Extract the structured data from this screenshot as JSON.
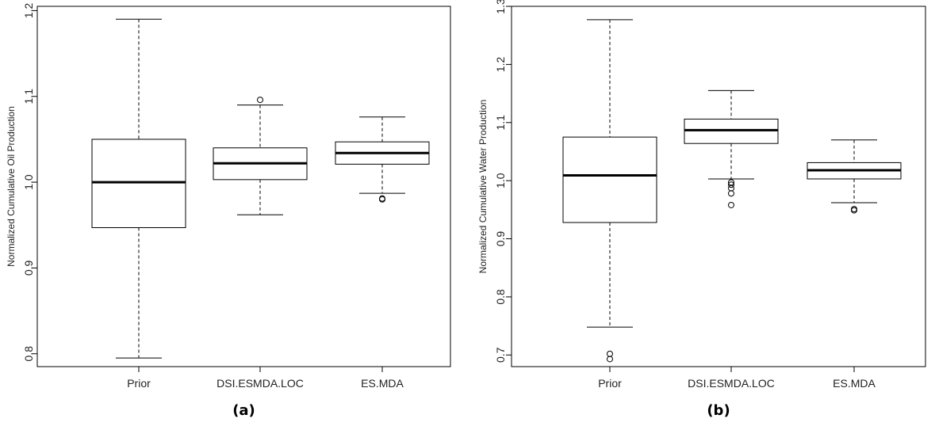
{
  "chart_data": [
    {
      "type": "boxplot",
      "panel_label": "(a)",
      "ylabel": "Normalized Cumulative Oil Production",
      "ylim": [
        0.785,
        1.205
      ],
      "yticks": [
        {
          "value": 0.8,
          "label": "0.8"
        },
        {
          "value": 0.9,
          "label": "0.9"
        },
        {
          "value": 1.0,
          "label": "1.0"
        },
        {
          "value": 1.1,
          "label": "1.1"
        },
        {
          "value": 1.2,
          "label": "1.2"
        }
      ],
      "categories": [
        "Prior",
        "DSI.ESMDA.LOC",
        "ES.MDA"
      ],
      "boxes": [
        {
          "whisker_low": 0.795,
          "q1": 0.947,
          "median": 1.0,
          "q3": 1.05,
          "whisker_high": 1.19,
          "outliers": []
        },
        {
          "whisker_low": 0.962,
          "q1": 1.003,
          "median": 1.022,
          "q3": 1.04,
          "whisker_high": 1.09,
          "outliers": [
            1.096
          ]
        },
        {
          "whisker_low": 0.987,
          "q1": 1.021,
          "median": 1.034,
          "q3": 1.047,
          "whisker_high": 1.076,
          "outliers": [
            0.98,
            0.981
          ]
        }
      ]
    },
    {
      "type": "boxplot",
      "panel_label": "(b)",
      "ylabel": "Normalized Cumulative Water Production",
      "ylim": [
        0.68,
        1.3
      ],
      "yticks": [
        {
          "value": 0.7,
          "label": "0.7"
        },
        {
          "value": 0.8,
          "label": "0.8"
        },
        {
          "value": 0.9,
          "label": "0.9"
        },
        {
          "value": 1.0,
          "label": "1.0"
        },
        {
          "value": 1.1,
          "label": "1.1"
        },
        {
          "value": 1.2,
          "label": "1.2"
        },
        {
          "value": 1.3,
          "label": "1.3"
        }
      ],
      "categories": [
        "Prior",
        "DSI.ESMDA.LOC",
        "ES.MDA"
      ],
      "boxes": [
        {
          "whisker_low": 0.748,
          "q1": 0.928,
          "median": 1.009,
          "q3": 1.075,
          "whisker_high": 1.277,
          "outliers": [
            0.702,
            0.693
          ]
        },
        {
          "whisker_low": 1.003,
          "q1": 1.064,
          "median": 1.087,
          "q3": 1.106,
          "whisker_high": 1.155,
          "outliers": [
            0.997,
            0.993,
            0.987,
            0.978,
            0.958
          ]
        },
        {
          "whisker_low": 0.962,
          "q1": 1.003,
          "median": 1.018,
          "q3": 1.031,
          "whisker_high": 1.07,
          "outliers": [
            0.951,
            0.949
          ]
        }
      ]
    }
  ]
}
